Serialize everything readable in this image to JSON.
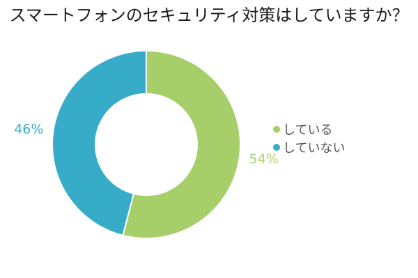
{
  "chart_data": {
    "type": "pie",
    "style": "donut",
    "title": "スマートフォンのセキュリティ対策はしていますか？",
    "categories": [
      "している",
      "していない"
    ],
    "values": [
      54,
      46
    ],
    "labels": [
      "54%",
      "46%"
    ],
    "colors": [
      "#a6cf6a",
      "#36acc9"
    ],
    "legend_position": "right"
  }
}
